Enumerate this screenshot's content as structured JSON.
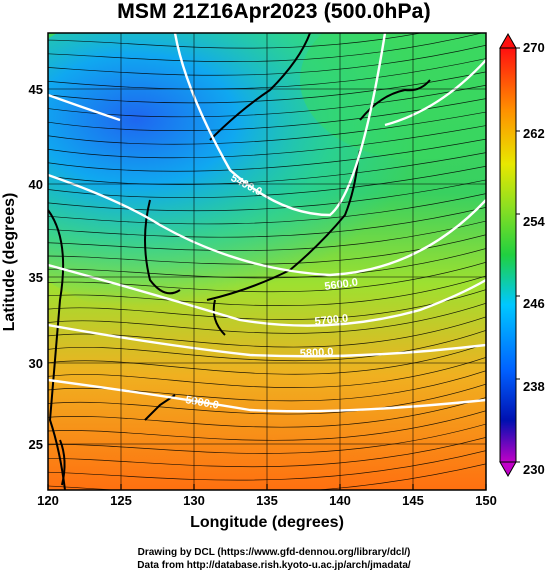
{
  "title": "MSM 21Z16Apr2023 (500.0hPa)",
  "x_axis": {
    "label": "Longitude (degrees)",
    "ticks": [
      "120",
      "125",
      "130",
      "135",
      "140",
      "145",
      "150"
    ],
    "range": [
      120,
      150
    ]
  },
  "y_axis": {
    "label": "Latitude  (degrees)",
    "ticks": [
      "25",
      "30",
      "35",
      "40",
      "45"
    ],
    "range": [
      22.4,
      47.6
    ]
  },
  "colorbar": {
    "ticks": [
      "230",
      "238",
      "246",
      "254",
      "262",
      "270"
    ],
    "min": 230,
    "max": 270
  },
  "contour_labels": [
    "5400.0",
    "5600.0",
    "5700.0",
    "5800.0",
    "5900.0"
  ],
  "credits": {
    "line1": "Drawing by DCL (https://www.gfd-dennou.org/library/dcl/)",
    "line2": "Data from http://database.rish.kyoto-u.ac.jp/arch/jmadata/"
  },
  "colors": {
    "low": "#1e78f0",
    "mid": "#2ecf52",
    "high": "#ff7a10",
    "contour": "#ffffff",
    "coast": "#000000"
  }
}
